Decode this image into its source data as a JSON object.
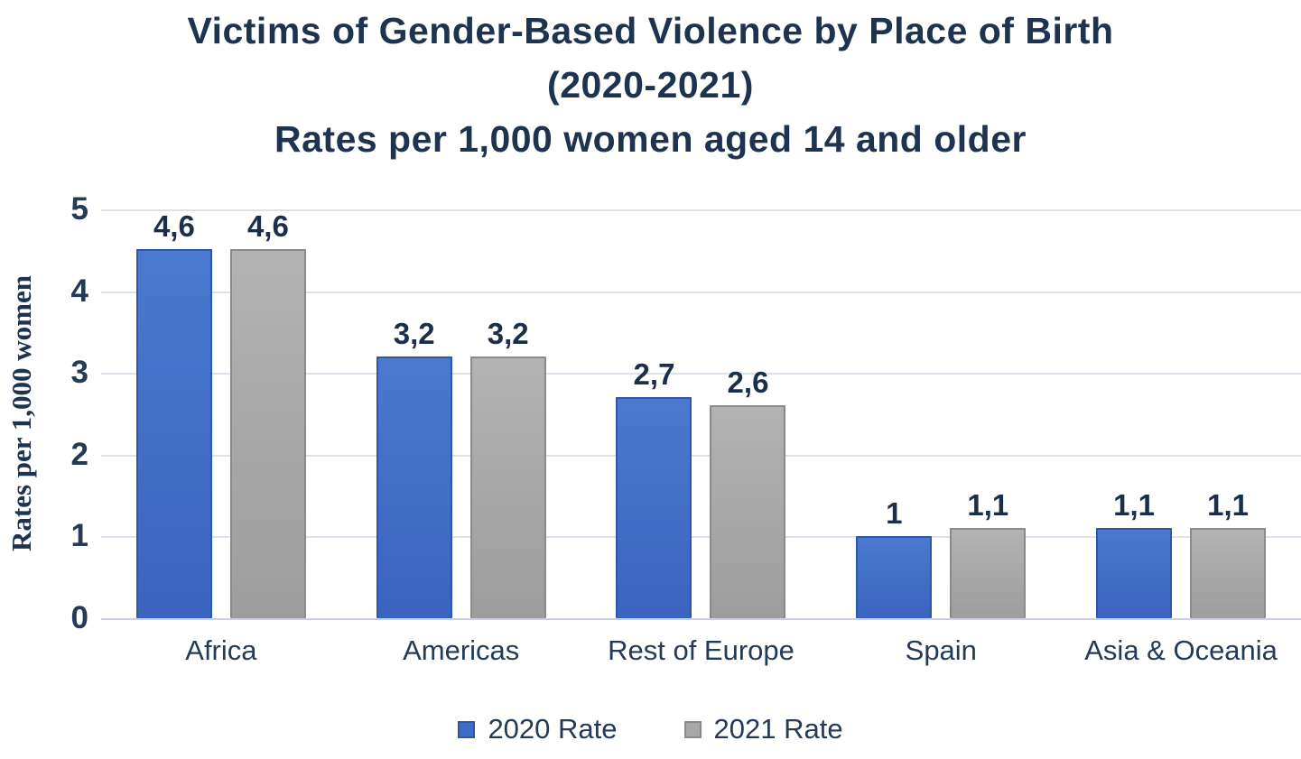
{
  "chart_data": {
    "type": "bar",
    "title_lines": [
      "Victims of Gender-Based Violence by Place of Birth",
      "(2020-2021)",
      "Rates per 1,000 women aged 14 and older"
    ],
    "ylabel": "Rates per 1,000 women",
    "xlabel": "",
    "categories": [
      "Africa",
      "Americas",
      "Rest of Europe",
      "Spain",
      "Asia & Oceania"
    ],
    "series": [
      {
        "name": "2020 Rate",
        "color": "#3e6cc7",
        "values": [
          4.6,
          3.2,
          2.7,
          1,
          1.1
        ],
        "labels": [
          "4,6",
          "3,2",
          "2,7",
          "1",
          "1,1"
        ]
      },
      {
        "name": "2021 Rate",
        "color": "#a8a8a8",
        "values": [
          4.6,
          3.2,
          2.6,
          1.1,
          1.1
        ],
        "labels": [
          "4,6",
          "3,2",
          "2,6",
          "1,1",
          "1,1"
        ]
      }
    ],
    "yticks": [
      0,
      1,
      2,
      3,
      4,
      5
    ],
    "ylim": [
      0,
      5
    ],
    "grid": true,
    "legend_position": "bottom",
    "decimal_separator": ",",
    "colors": {
      "title_text": "#1e3350",
      "axis_text": "#243a56",
      "data_label_text": "#1b2f4b",
      "gridline": "#dbe2ec",
      "series_2020": "#3e6cc7",
      "series_2021": "#a8a8a8"
    }
  }
}
